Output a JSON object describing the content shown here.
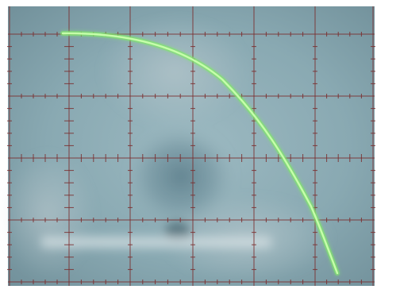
{
  "scene": {
    "subject": "oscilloscope-screen-photo",
    "screen_color": "#86a7af",
    "graticule_color": "#7a2a2a",
    "trace_color": "#b8ff9a",
    "frame_color": "#ffffff",
    "grid": {
      "major_divisions_x": 6,
      "major_divisions_y": 4,
      "minor_ticks_per_division": 5,
      "center_axes_ticked": true
    },
    "trace": {
      "shape": "falling-curve",
      "start_level": "top-left",
      "end_level": "bottom-right"
    },
    "reflections": [
      "hand",
      "camera-lens",
      "ruler"
    ]
  }
}
